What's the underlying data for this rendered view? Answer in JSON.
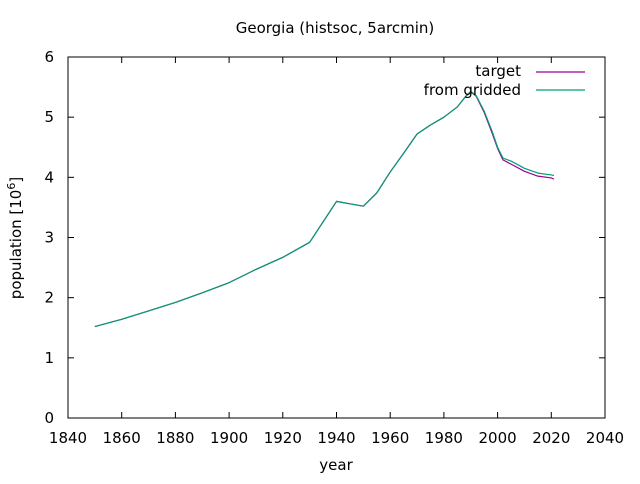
{
  "chart_data": {
    "type": "line",
    "title": "Georgia (histsoc, 5arcmin)",
    "xlabel": "year",
    "ylabel_text": "population [10",
    "ylabel_exp": "6",
    "ylabel_close": "]",
    "xlim": [
      1840,
      2040
    ],
    "ylim": [
      0,
      6
    ],
    "xticks": [
      1840,
      1860,
      1880,
      1900,
      1920,
      1940,
      1960,
      1980,
      2000,
      2020,
      2040
    ],
    "yticks": [
      0,
      1,
      2,
      3,
      4,
      5,
      6
    ],
    "grid": false,
    "legend_position": "top-right",
    "series": [
      {
        "name": "target",
        "color": "#9b009b",
        "x": [
          1850,
          1860,
          1870,
          1880,
          1890,
          1900,
          1910,
          1920,
          1930,
          1940,
          1945,
          1950,
          1955,
          1960,
          1965,
          1970,
          1975,
          1980,
          1985,
          1988,
          1990,
          1992,
          1995,
          1998,
          2000,
          2002,
          2005,
          2010,
          2015,
          2020,
          2021
        ],
        "y": [
          1.52,
          1.64,
          1.78,
          1.92,
          2.08,
          2.25,
          2.47,
          2.67,
          2.92,
          3.6,
          3.56,
          3.52,
          3.74,
          4.09,
          4.4,
          4.72,
          4.87,
          5.0,
          5.17,
          5.34,
          5.42,
          5.35,
          5.08,
          4.73,
          4.48,
          4.29,
          4.22,
          4.1,
          4.02,
          3.99,
          3.97
        ]
      },
      {
        "name": "from gridded",
        "color": "#009e73",
        "x": [
          1850,
          1860,
          1870,
          1880,
          1890,
          1900,
          1910,
          1920,
          1930,
          1940,
          1945,
          1950,
          1955,
          1960,
          1965,
          1970,
          1975,
          1980,
          1985,
          1988,
          1990,
          1992,
          1995,
          1998,
          2000,
          2002,
          2005,
          2010,
          2015,
          2020,
          2021
        ],
        "y": [
          1.52,
          1.64,
          1.78,
          1.92,
          2.08,
          2.25,
          2.47,
          2.67,
          2.92,
          3.6,
          3.56,
          3.52,
          3.74,
          4.09,
          4.4,
          4.72,
          4.87,
          5.0,
          5.17,
          5.34,
          5.43,
          5.36,
          5.1,
          4.76,
          4.5,
          4.32,
          4.27,
          4.15,
          4.07,
          4.04,
          4.03
        ]
      }
    ]
  }
}
